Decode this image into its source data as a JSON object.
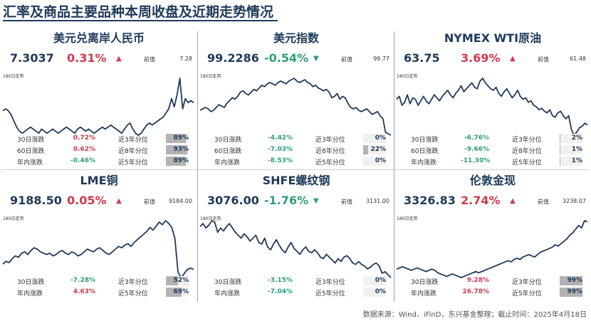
{
  "header": {
    "title": "汇率及商品主要品种本周收盘及近期走势情况"
  },
  "labels": {
    "prev": "前值",
    "trend": "180日走势",
    "d30": "30日涨跌",
    "d60": "60日涨跌",
    "ytd": "年内涨跌",
    "q3": "近3年分位",
    "q8": "近8年分位",
    "q5": "近5年分位"
  },
  "colors": {
    "up": "#d33a4d",
    "down": "#2e9e78",
    "line": "#1f3a5a",
    "bar": "#b3b3b3"
  },
  "icons": {
    "up": "triangle-up-icon",
    "down": "triangle-down-icon"
  },
  "panels": [
    {
      "name": "美元兑离岸人民币",
      "value": "7.3037",
      "change": "0.31%",
      "dir": "up",
      "prev": "7.28",
      "d30": "0.72%",
      "d30dir": "up",
      "d60": "0.62%",
      "d60dir": "up",
      "ytd": "-0.46%",
      "ytddir": "down",
      "q3": "89%",
      "q3f": 0.89,
      "q8": "93%",
      "q8f": 0.93,
      "q5": "89%",
      "q5f": 0.89,
      "trend": [
        58,
        60,
        58,
        54,
        48,
        42,
        38,
        36,
        38,
        40,
        42,
        40,
        38,
        36,
        40,
        38,
        36,
        38,
        40,
        38,
        36,
        38,
        40,
        42,
        40,
        38,
        36,
        40,
        42,
        40,
        38,
        40,
        38,
        36,
        38,
        40,
        42,
        40,
        42,
        44,
        42,
        40,
        38,
        36,
        40,
        44,
        46,
        40,
        36,
        34,
        36,
        40,
        44,
        46,
        44,
        46,
        48,
        50,
        52,
        56,
        60,
        70,
        62,
        74,
        90,
        60,
        70,
        66,
        68,
        66
      ]
    },
    {
      "name": "美元指数",
      "value": "99.2286",
      "change": "-0.54%",
      "dir": "down",
      "prev": "99.77",
      "d30": "-4.42%",
      "d30dir": "down",
      "d60": "-7.03%",
      "d60dir": "down",
      "ytd": "-8.53%",
      "ytddir": "down",
      "q3": "0%",
      "q3f": 0,
      "q8": "22%",
      "q8f": 0.22,
      "q5": "0%",
      "q5f": 0,
      "trend": [
        42,
        44,
        46,
        44,
        40,
        42,
        46,
        50,
        48,
        46,
        52,
        56,
        60,
        58,
        62,
        68,
        70,
        66,
        64,
        68,
        72,
        70,
        74,
        78,
        76,
        80,
        82,
        80,
        78,
        82,
        84,
        82,
        80,
        84,
        86,
        88,
        84,
        82,
        84,
        86,
        82,
        80,
        76,
        78,
        74,
        72,
        70,
        72,
        68,
        60,
        62,
        66,
        58,
        62,
        60,
        52,
        46,
        44,
        46,
        42,
        40,
        42,
        44,
        40,
        36,
        38,
        40,
        34,
        30,
        10,
        8,
        6
      ]
    },
    {
      "name": "NYMEX WTI原油",
      "value": "63.75",
      "change": "3.69%",
      "dir": "up",
      "prev": "61.48",
      "d30": "-6.76%",
      "d30dir": "down",
      "d60": "-9.66%",
      "d60dir": "down",
      "ytd": "-11.30%",
      "ytddir": "down",
      "q3": "2%",
      "q3f": 0.02,
      "q8": "1%",
      "q8f": 0.01,
      "q5": "1%",
      "q5f": 0.01,
      "trend": [
        58,
        62,
        50,
        54,
        64,
        52,
        60,
        58,
        50,
        56,
        62,
        56,
        52,
        58,
        64,
        60,
        56,
        62,
        66,
        70,
        64,
        60,
        66,
        70,
        76,
        68,
        72,
        76,
        80,
        74,
        72,
        82,
        86,
        80,
        76,
        72,
        70,
        74,
        66,
        62,
        68,
        72,
        66,
        60,
        64,
        70,
        62,
        58,
        60,
        54,
        56,
        50,
        48,
        44,
        46,
        42,
        40,
        44,
        36,
        34,
        40,
        42,
        36,
        32,
        36,
        18,
        10,
        14,
        20,
        22,
        26,
        24
      ]
    },
    {
      "name": "LME铜",
      "value": "9188.50",
      "change": "0.05%",
      "dir": "up",
      "prev": "9184.00",
      "d30": "-7.28%",
      "d30dir": "down",
      "ytd": "4.63%",
      "ytddir": "up",
      "q3": "52%",
      "q3f": 0.52,
      "q5": "69%",
      "q5f": 0.69,
      "trend": [
        22,
        26,
        24,
        30,
        34,
        32,
        38,
        40,
        36,
        42,
        46,
        44,
        40,
        38,
        36,
        38,
        34,
        36,
        40,
        42,
        38,
        36,
        40,
        38,
        34,
        36,
        40,
        44,
        42,
        40,
        44,
        46,
        42,
        38,
        36,
        40,
        44,
        48,
        46,
        50,
        52,
        48,
        54,
        58,
        62,
        66,
        70,
        76,
        72,
        78,
        84,
        80,
        86,
        82,
        76,
        60,
        10,
        2,
        8,
        14,
        16,
        14
      ]
    },
    {
      "name": "SHFE螺纹钢",
      "value": "3076.00",
      "change": "-1.76%",
      "dir": "down",
      "prev": "3131.00",
      "d30": "-3.15%",
      "d30dir": "down",
      "ytd": "-7.04%",
      "ytddir": "down",
      "q3": "0%",
      "q3f": 0,
      "q5": "0%",
      "q5f": 0,
      "trend": [
        72,
        76,
        70,
        74,
        80,
        78,
        64,
        70,
        66,
        72,
        76,
        70,
        64,
        60,
        56,
        62,
        58,
        52,
        56,
        60,
        50,
        48,
        56,
        44,
        40,
        48,
        54,
        46,
        40,
        36,
        44,
        50,
        42,
        38,
        34,
        40,
        44,
        38,
        36,
        40,
        36,
        30,
        28,
        34,
        30,
        26,
        22,
        28,
        24,
        30,
        32,
        28,
        22,
        20,
        24,
        20,
        18,
        14,
        16,
        20,
        22,
        18,
        8,
        10,
        6,
        2
      ]
    },
    {
      "name": "伦敦金现",
      "value": "3326.83",
      "change": "2.74%",
      "dir": "up",
      "prev": "3238.07",
      "d30": "9.28%",
      "d30dir": "up",
      "ytd": "26.78%",
      "ytddir": "up",
      "q3": "99%",
      "q3f": 0.99,
      "q5": "99%",
      "q5f": 0.99,
      "trend": [
        20,
        22,
        24,
        22,
        20,
        18,
        20,
        22,
        20,
        18,
        16,
        18,
        20,
        18,
        14,
        12,
        10,
        8,
        10,
        12,
        10,
        8,
        6,
        8,
        10,
        12,
        14,
        16,
        14,
        16,
        18,
        20,
        22,
        24,
        26,
        28,
        30,
        32,
        34,
        32,
        36,
        38,
        36,
        40,
        42,
        44,
        42,
        40,
        44,
        48,
        50,
        52,
        54,
        56,
        60,
        58,
        62,
        66,
        70,
        76,
        80,
        86,
        92,
        88,
        100,
        98
      ]
    }
  ],
  "footer": {
    "source": "数据来源：Wind、iFinD，东兴基金整理；截止时间：2025年4月18日"
  }
}
